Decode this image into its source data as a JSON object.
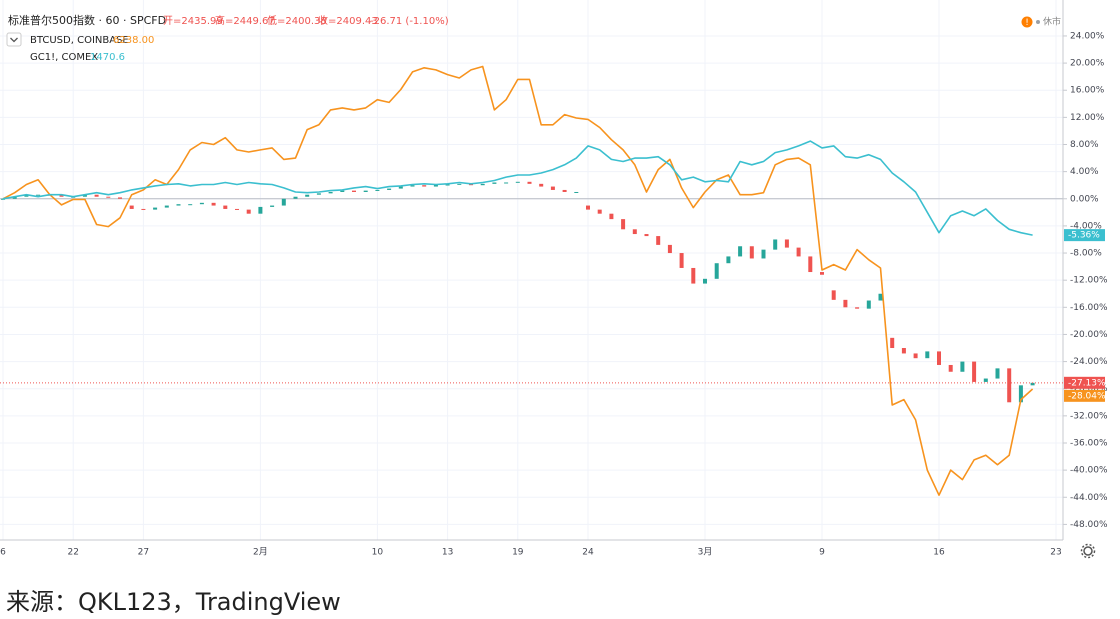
{
  "chart_data": {
    "type": "line",
    "status": "休市",
    "ohlc_labels": [
      "开=2435.99",
      "高=2449.67",
      "低=2400.38",
      "收=2409.43"
    ],
    "change_label": "-26.71 (-1.10%)",
    "categories": [
      "6",
      null,
      null,
      null,
      null,
      null,
      "22",
      null,
      null,
      null,
      null,
      null,
      "27",
      null,
      null,
      null,
      null,
      null,
      null,
      null,
      null,
      null,
      "2月",
      null,
      null,
      null,
      null,
      null,
      null,
      null,
      null,
      null,
      "10",
      null,
      null,
      null,
      null,
      null,
      "13",
      null,
      null,
      null,
      null,
      null,
      "19",
      null,
      null,
      null,
      null,
      null,
      "24",
      null,
      null,
      null,
      null,
      null,
      null,
      null,
      null,
      null,
      "3月",
      null,
      null,
      null,
      null,
      null,
      null,
      null,
      null,
      null,
      "9",
      null,
      null,
      null,
      null,
      null,
      null,
      null,
      null,
      null,
      "16",
      null,
      null,
      null,
      null,
      null,
      null,
      null,
      null,
      null,
      "23"
    ],
    "ylim": [
      -50.3,
      29.3
    ],
    "yticks": [
      {
        "value": 24,
        "label": "24.00%"
      },
      {
        "value": 20,
        "label": "20.00%"
      },
      {
        "value": 16,
        "label": "16.00%"
      },
      {
        "value": 12,
        "label": "12.00%"
      },
      {
        "value": 8,
        "label": "8.00%"
      },
      {
        "value": 4,
        "label": "4.00%"
      },
      {
        "value": 0,
        "label": "0.00%"
      },
      {
        "value": -4,
        "label": "-4.00%"
      },
      {
        "value": -8,
        "label": "-8.00%"
      },
      {
        "value": -12,
        "label": "-12.00%"
      },
      {
        "value": -16,
        "label": "-16.00%"
      },
      {
        "value": -20,
        "label": "-20.00%"
      },
      {
        "value": -24,
        "label": "-24.00%"
      },
      {
        "value": -28,
        "label": "-28.00%"
      },
      {
        "value": -32,
        "label": "-32.00%"
      },
      {
        "value": -36,
        "label": "-36.00%"
      },
      {
        "value": -40,
        "label": "-40.00%"
      },
      {
        "value": -44,
        "label": "-44.00%"
      },
      {
        "value": -48,
        "label": "-48.00%"
      }
    ],
    "grid": true,
    "series": [
      {
        "name": "标准普尔500指数 · 60 · SPCFD",
        "type": "candlestick",
        "up_color": "#26a69a",
        "down_color": "#ef5350",
        "last_value_label": "-27.13%",
        "open": [
          0,
          0.0,
          0.3,
          0.6,
          0.6,
          0.5,
          0.3,
          0.3,
          0.6,
          0.3,
          0.2,
          -1.0,
          -1.5,
          -1.6,
          -1.3,
          -1.0,
          -0.8,
          -0.8,
          -0.6,
          -1.0,
          -1.5,
          -1.6,
          -2.2,
          -1.2,
          -1.0,
          0.0,
          0.3,
          0.6,
          0.8,
          1.0,
          1.2,
          1.0,
          1.2,
          1.3,
          1.5,
          1.8,
          2.0,
          1.8,
          2.1,
          2.1,
          2.2,
          2.0,
          2.2,
          2.4,
          2.4,
          2.5,
          2.2,
          1.8,
          1.3,
          1.0,
          -1.0,
          -1.6,
          -2.2,
          -3.0,
          -4.5,
          -5.2,
          -5.5,
          -6.8,
          -8.0,
          -10.2,
          -12.5,
          -11.8,
          -9.5,
          -8.5,
          -7.0,
          -8.8,
          -7.5,
          -6.0,
          -7.2,
          -8.5,
          -10.8,
          -13.5,
          -14.9,
          -16.0,
          -16.2,
          -15.0,
          -20.5,
          -22.0,
          -22.8,
          -23.5,
          -22.5,
          -24.5,
          -25.5,
          -24.0,
          -27.0,
          -26.5,
          -25.0,
          -30.0,
          -27.5,
          null,
          null
        ],
        "close": [
          0,
          0.3,
          0.6,
          0.6,
          0.5,
          0.3,
          0.3,
          0.6,
          0.3,
          0.2,
          0,
          -1.5,
          -1.6,
          -1.3,
          -1.0,
          -0.8,
          -0.8,
          -0.6,
          -1.0,
          -1.5,
          -1.6,
          -2.2,
          -1.2,
          -1.0,
          0.0,
          0.3,
          0.6,
          0.8,
          1.0,
          1.2,
          1.0,
          1.2,
          1.3,
          1.5,
          1.8,
          2.0,
          1.8,
          2.1,
          2.1,
          2.2,
          2.0,
          2.2,
          2.4,
          2.4,
          2.5,
          2.2,
          1.8,
          1.3,
          1.0,
          1.0,
          -1.6,
          -2.2,
          -3.0,
          -4.5,
          -5.2,
          -5.5,
          -6.8,
          -8.0,
          -10.2,
          -12.5,
          -11.8,
          -9.5,
          -8.5,
          -7.0,
          -8.8,
          -7.5,
          -6.0,
          -7.2,
          -8.5,
          -10.8,
          -11.2,
          -14.9,
          -16.0,
          -16.2,
          -15.0,
          -14.0,
          -22.0,
          -22.8,
          -23.5,
          -22.5,
          -24.5,
          -25.5,
          -24.0,
          -27.0,
          -26.5,
          -25.0,
          -30.0,
          -27.5,
          -27.13,
          null,
          null
        ]
      },
      {
        "name": "BTCUSD, COINBASE",
        "price": "6238.00",
        "type": "line",
        "color": "#f7931e",
        "last_value_label": "-28.04%",
        "values": [
          0,
          0.9,
          2.1,
          2.8,
          0.6,
          -0.9,
          -0.1,
          -0.1,
          -3.8,
          -4.1,
          -2.8,
          0.6,
          1.3,
          2.8,
          2.1,
          4.3,
          7.2,
          8.3,
          8.0,
          9.0,
          7.2,
          6.9,
          7.2,
          7.5,
          5.8,
          6.0,
          10.2,
          10.9,
          13.1,
          13.4,
          13.1,
          13.4,
          14.6,
          14.2,
          16.1,
          18.7,
          19.3,
          19.0,
          18.3,
          17.8,
          19.0,
          19.5,
          13.1,
          14.6,
          17.6,
          17.6,
          10.9,
          10.9,
          12.4,
          11.9,
          11.7,
          10.5,
          8.7,
          7.2,
          5.0,
          1.0,
          4.3,
          5.8,
          1.6,
          -1.3,
          1.0,
          2.8,
          3.5,
          0.6,
          0.6,
          0.9,
          5.0,
          5.8,
          6.0,
          5.0,
          -10.5,
          -9.7,
          -10.5,
          -7.5,
          -9.0,
          -10.2,
          -30.4,
          -29.6,
          -32.6,
          -40.0,
          -43.7,
          -40.0,
          -41.4,
          -38.5,
          -37.8,
          -39.2,
          -37.8,
          -29.6,
          -28.04,
          null,
          null
        ]
      },
      {
        "name": "GC1!, COMEX",
        "price": "1470.6",
        "type": "line",
        "color": "#3bbfcf",
        "last_value_label": "-5.36%",
        "values": [
          0,
          0.3,
          0.6,
          0.3,
          0.6,
          0.6,
          0.3,
          0.6,
          0.9,
          0.6,
          0.9,
          1.3,
          1.6,
          1.9,
          2.1,
          2.2,
          1.9,
          2.1,
          2.1,
          2.4,
          2.1,
          2.4,
          2.2,
          2.1,
          1.6,
          1.0,
          0.9,
          1.0,
          1.2,
          1.3,
          1.6,
          1.8,
          1.5,
          1.8,
          1.9,
          2.1,
          2.2,
          2.1,
          2.2,
          2.4,
          2.2,
          2.4,
          2.7,
          3.2,
          3.5,
          3.5,
          3.8,
          4.3,
          5.0,
          6.0,
          7.8,
          7.2,
          5.8,
          5.5,
          6.0,
          6.0,
          6.2,
          5.0,
          2.8,
          3.2,
          2.5,
          2.7,
          2.5,
          5.5,
          5.0,
          5.5,
          6.8,
          7.2,
          7.8,
          8.5,
          7.5,
          7.8,
          6.2,
          6.0,
          6.5,
          5.8,
          3.8,
          2.5,
          1.0,
          -2.0,
          -5.0,
          -2.5,
          -1.8,
          -2.5,
          -1.5,
          -3.2,
          -4.5,
          -5.0,
          -5.36,
          null,
          null
        ]
      }
    ]
  },
  "source": "来源：QKL123，TradingView"
}
